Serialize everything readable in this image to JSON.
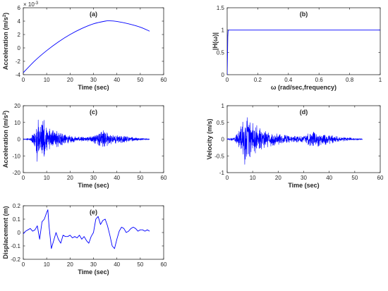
{
  "figure": {
    "line_color": "#0000ff",
    "axis_color": "#262626"
  },
  "chart_data": [
    {
      "id": "a",
      "type": "line",
      "title": "(a)",
      "xlabel": "Time (sec)",
      "ylabel": "Acceleration (m/s",
      "ylabel_sup": "2",
      "ylabel_end": ")",
      "exponent_base": "× 10",
      "exponent_power": "-3",
      "xlim": [
        0,
        60
      ],
      "ylim": [
        -4,
        6
      ],
      "xticks": [
        0,
        10,
        20,
        30,
        40,
        50,
        60
      ],
      "yticks": [
        -4,
        -2,
        0,
        2,
        4,
        6
      ],
      "grid": false,
      "series": [
        {
          "x": [
            0,
            5,
            10,
            15,
            20,
            25,
            30,
            35,
            37,
            40,
            45,
            50,
            54
          ],
          "y": [
            -3.7,
            -1.9,
            -0.4,
            0.9,
            2.0,
            2.9,
            3.6,
            4.0,
            4.05,
            3.95,
            3.6,
            3.1,
            2.5
          ]
        }
      ]
    },
    {
      "id": "b",
      "type": "line",
      "title": "(b)",
      "xlabel": "ω (rad/sec,frequency)",
      "ylabel": "|H(ω)|",
      "xlim": [
        0,
        1
      ],
      "ylim": [
        0,
        1.5
      ],
      "xticks": [
        0,
        0.2,
        0.4,
        0.6,
        0.8,
        1
      ],
      "yticks": [
        0,
        0.5,
        1,
        1.5
      ],
      "grid": false,
      "series": [
        {
          "x": [
            0,
            0.002,
            0.004,
            0.006,
            0.01,
            0.05,
            0.2,
            0.5,
            1.0
          ],
          "y": [
            0,
            0.4,
            0.85,
            0.98,
            1.0,
            1.0,
            1.0,
            1.0,
            1.0
          ]
        }
      ]
    },
    {
      "id": "c",
      "type": "line",
      "title": "(c)",
      "xlabel": "Time (sec)",
      "ylabel": "Acceleration (m/s",
      "ylabel_sup": "2",
      "ylabel_end": ")",
      "xlim": [
        0,
        60
      ],
      "ylim": [
        -20,
        20
      ],
      "xticks": [
        0,
        10,
        20,
        30,
        40,
        50,
        60
      ],
      "yticks": [
        -20,
        -10,
        0,
        10,
        20
      ],
      "grid": false,
      "signal": {
        "duration": 54,
        "samples": 1100,
        "seed": 11,
        "envelope": [
          [
            0,
            0.3
          ],
          [
            3,
            0.6
          ],
          [
            5,
            5
          ],
          [
            6,
            12
          ],
          [
            7,
            12
          ],
          [
            8,
            9
          ],
          [
            9,
            10
          ],
          [
            10,
            6
          ],
          [
            12,
            5
          ],
          [
            15,
            4
          ],
          [
            18,
            2.5
          ],
          [
            22,
            1.5
          ],
          [
            27,
            1
          ],
          [
            30,
            2
          ],
          [
            33,
            4
          ],
          [
            35,
            5
          ],
          [
            38,
            2.5
          ],
          [
            42,
            2
          ],
          [
            47,
            1
          ],
          [
            50,
            0.6
          ],
          [
            54,
            0.3
          ]
        ]
      }
    },
    {
      "id": "d",
      "type": "line",
      "title": "(d)",
      "xlabel": "Time (sec)",
      "ylabel": "Velocity (m/s)",
      "xlim": [
        0,
        60
      ],
      "ylim": [
        -1,
        1
      ],
      "xticks": [
        0,
        10,
        20,
        30,
        40,
        50,
        60
      ],
      "yticks": [
        -1,
        -0.5,
        0,
        0.5,
        1
      ],
      "grid": false,
      "signal": {
        "duration": 53,
        "samples": 900,
        "seed": 29,
        "envelope": [
          [
            0,
            0.02
          ],
          [
            3,
            0.05
          ],
          [
            5,
            0.3
          ],
          [
            7,
            0.72
          ],
          [
            9,
            0.55
          ],
          [
            11,
            0.4
          ],
          [
            13,
            0.3
          ],
          [
            16,
            0.2
          ],
          [
            20,
            0.15
          ],
          [
            25,
            0.08
          ],
          [
            30,
            0.1
          ],
          [
            33,
            0.22
          ],
          [
            35,
            0.2
          ],
          [
            38,
            0.15
          ],
          [
            42,
            0.1
          ],
          [
            46,
            0.05
          ],
          [
            50,
            0.03
          ],
          [
            53,
            0.02
          ]
        ]
      }
    },
    {
      "id": "e",
      "type": "line",
      "title": "(e)",
      "xlabel": "Time (sec)",
      "ylabel": "Displacement (m)",
      "xlim": [
        0,
        60
      ],
      "ylim": [
        -0.2,
        0.2
      ],
      "xticks": [
        0,
        10,
        20,
        30,
        40,
        50,
        60
      ],
      "yticks": [
        -0.2,
        -0.1,
        0,
        0.1,
        0.2
      ],
      "grid": false,
      "series": [
        {
          "x": [
            0,
            1,
            2,
            3,
            4,
            5,
            6,
            7,
            8,
            9,
            10,
            10.5,
            11,
            12,
            13,
            14,
            15,
            16,
            17,
            18,
            19,
            20,
            21,
            22,
            23,
            24,
            25,
            26,
            27,
            28,
            29,
            30,
            31,
            32,
            33,
            34,
            35,
            36,
            37,
            38,
            39,
            40,
            41,
            42,
            43,
            44,
            45,
            46,
            47,
            48,
            49,
            50,
            51,
            52,
            53,
            54
          ],
          "y": [
            -0.01,
            0.01,
            0.02,
            0.03,
            0.01,
            0.02,
            0.05,
            -0.05,
            0.08,
            0.1,
            0.15,
            0.17,
            0.05,
            -0.12,
            -0.06,
            0.0,
            -0.05,
            -0.08,
            -0.02,
            -0.03,
            -0.03,
            -0.02,
            -0.04,
            -0.03,
            -0.04,
            -0.02,
            -0.05,
            -0.03,
            -0.06,
            -0.08,
            -0.03,
            0.0,
            0.1,
            0.12,
            0.06,
            0.09,
            0.1,
            0.05,
            -0.02,
            -0.1,
            -0.12,
            -0.05,
            0.01,
            0.04,
            0.03,
            0.0,
            0.01,
            0.03,
            0.04,
            0.03,
            0.01,
            0.02,
            0.02,
            0.01,
            0.02,
            0.01
          ]
        }
      ]
    }
  ]
}
